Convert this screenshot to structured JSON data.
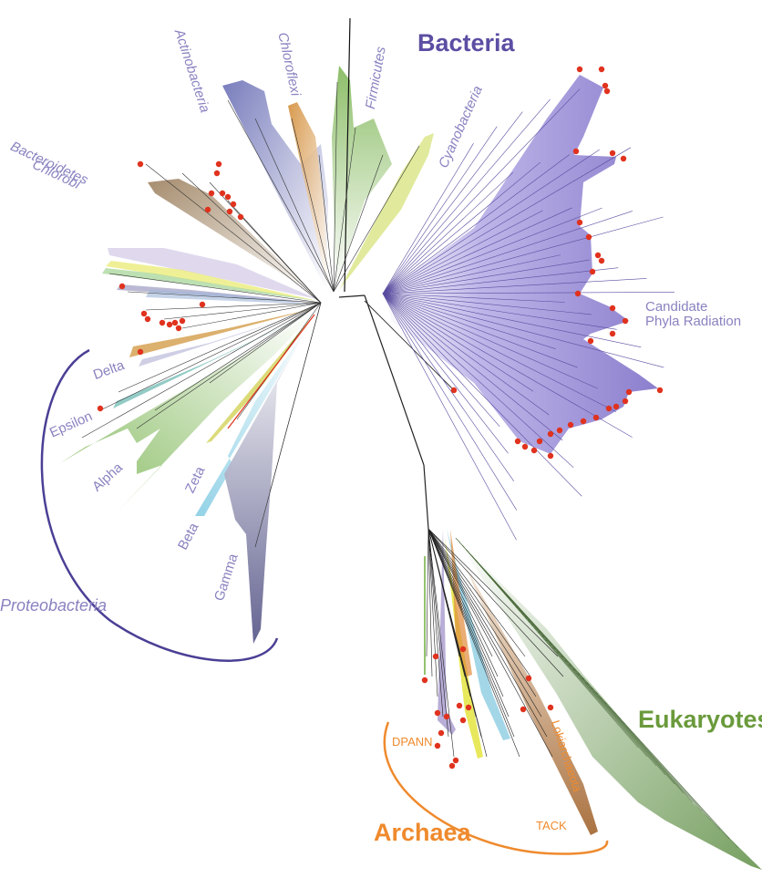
{
  "domains": {
    "bacteria": {
      "label": "Bacteria",
      "color": "#5b4ea3"
    },
    "archaea": {
      "label": "Archaea",
      "color": "#ef8a2d"
    },
    "eukaryotes": {
      "label": "Eukaryotes",
      "color": "#6a9a3c"
    }
  },
  "groups": {
    "actinobacteria": "Actinobacteria",
    "chloroflexi": "Chloroflexi",
    "firmicutes": "Firmicutes",
    "cyanobacteria": "Cyanobacteria",
    "bacteroidetes_line1": "Bacteroidetes",
    "bacteroidetes_line2": "Chlorobi",
    "cpr_line1": "Candidate",
    "cpr_line2": "Phyla Radiation",
    "delta": "Delta",
    "epsilon": "Epsilon",
    "alpha": "Alpha",
    "zeta": "Zeta",
    "beta": "Beta",
    "gamma": "Gamma",
    "proteobacteria": "Proteobacteria",
    "dpann": "DPANN",
    "lokiarchaeota": "Lokiarchaeota",
    "tack": "TACK"
  },
  "colors": {
    "label_purple": "#8a82c0",
    "cpr_purple": "#8b7fd0",
    "actino_blue": "#6f74b8",
    "chloroflexi_tan": "#d89a4a",
    "firmicutes_green": "#7fb55a",
    "bacteroidetes_brown": "#a88e6e",
    "alpha_green": "#8fbf6a",
    "gamma_slate": "#6e6f98",
    "beta_cyan": "#8fd0e6",
    "euk_green": "#8aa874",
    "loki_brown": "#b07a4a",
    "marker_red": "#e0321e",
    "branch": "#222222"
  }
}
